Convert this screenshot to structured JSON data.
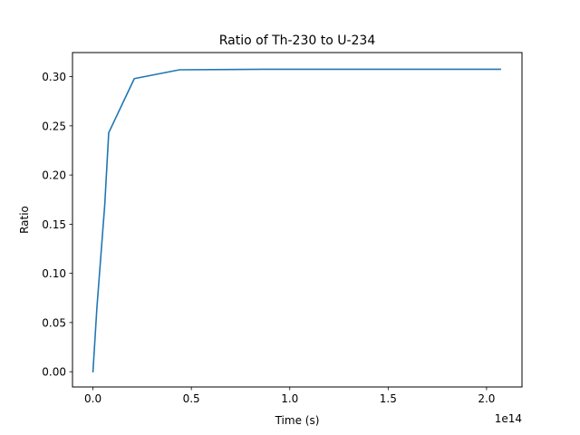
{
  "chart_data": {
    "type": "line",
    "title": "Ratio of Th-230 to U-234",
    "xlabel": "Time (s)",
    "ylabel": "Ratio",
    "x_offset_label": "1e14",
    "xlim": [
      -10400000000000.0,
      218000000000000.0
    ],
    "ylim": [
      -0.0155,
      0.3245
    ],
    "x_ticks": [
      0,
      50000000000000.0,
      100000000000000.0,
      150000000000000.0,
      200000000000000.0
    ],
    "x_tick_labels": [
      "0.0",
      "0.5",
      "1.0",
      "1.5",
      "2.0"
    ],
    "y_ticks": [
      0.0,
      0.05,
      0.1,
      0.15,
      0.2,
      0.25,
      0.3
    ],
    "y_tick_labels": [
      "0.00",
      "0.05",
      "0.10",
      "0.15",
      "0.20",
      "0.25",
      "0.30"
    ],
    "grid": false,
    "series": [
      {
        "color": "#1f77b4",
        "x": [
          0,
          2000000000000.0,
          6000000000000.0,
          8000000000000.0,
          21000000000000.0,
          44000000000000.0,
          87000000000000.0,
          207000000000000.0
        ],
        "y": [
          0.0,
          0.065,
          0.17,
          0.243,
          0.298,
          0.307,
          0.3075,
          0.3075
        ]
      }
    ]
  }
}
